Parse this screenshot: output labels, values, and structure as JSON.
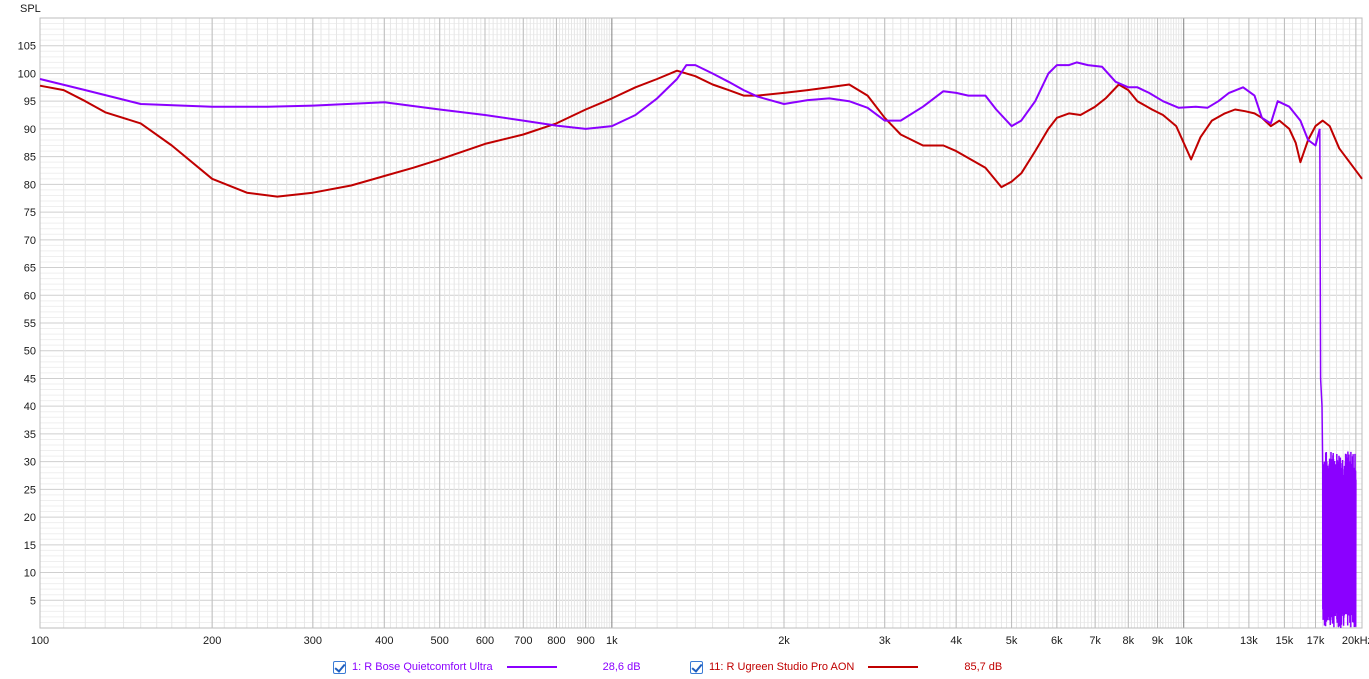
{
  "chart_data": {
    "type": "line",
    "ylabel": "SPL",
    "x_scale": "log",
    "xlim": [
      100,
      20500
    ],
    "ylim": [
      0,
      110
    ],
    "yticks": [
      5,
      10,
      15,
      20,
      25,
      30,
      35,
      40,
      45,
      50,
      55,
      60,
      65,
      70,
      75,
      80,
      85,
      90,
      95,
      100,
      105
    ],
    "xticks": [
      {
        "v": 100,
        "l": "100"
      },
      {
        "v": 200,
        "l": "200"
      },
      {
        "v": 300,
        "l": "300"
      },
      {
        "v": 400,
        "l": "400"
      },
      {
        "v": 500,
        "l": "500"
      },
      {
        "v": 600,
        "l": "600"
      },
      {
        "v": 700,
        "l": "700"
      },
      {
        "v": 800,
        "l": "800"
      },
      {
        "v": 900,
        "l": "900"
      },
      {
        "v": 1000,
        "l": "1k"
      },
      {
        "v": 2000,
        "l": "2k"
      },
      {
        "v": 3000,
        "l": "3k"
      },
      {
        "v": 4000,
        "l": "4k"
      },
      {
        "v": 5000,
        "l": "5k"
      },
      {
        "v": 6000,
        "l": "6k"
      },
      {
        "v": 7000,
        "l": "7k"
      },
      {
        "v": 8000,
        "l": "8k"
      },
      {
        "v": 9000,
        "l": "9k"
      },
      {
        "v": 10000,
        "l": "10k"
      },
      {
        "v": 13000,
        "l": "13k"
      },
      {
        "v": 15000,
        "l": "15k"
      },
      {
        "v": 17000,
        "l": "17k"
      },
      {
        "v": 20000,
        "l": "20kHz"
      }
    ],
    "grid": true,
    "series": [
      {
        "name": "1: R Bose Quietcomfort Ultra",
        "color": "#8b00ff",
        "points": [
          [
            100,
            99
          ],
          [
            120,
            97
          ],
          [
            150,
            94.5
          ],
          [
            200,
            94
          ],
          [
            250,
            94
          ],
          [
            300,
            94.2
          ],
          [
            400,
            94.8
          ],
          [
            500,
            93.5
          ],
          [
            600,
            92.5
          ],
          [
            700,
            91.5
          ],
          [
            800,
            90.6
          ],
          [
            900,
            90
          ],
          [
            1000,
            90.5
          ],
          [
            1100,
            92.5
          ],
          [
            1200,
            95.5
          ],
          [
            1300,
            99
          ],
          [
            1350,
            101.5
          ],
          [
            1400,
            101.5
          ],
          [
            1500,
            100
          ],
          [
            1600,
            98.5
          ],
          [
            1700,
            97
          ],
          [
            1800,
            95.8
          ],
          [
            2000,
            94.5
          ],
          [
            2200,
            95.2
          ],
          [
            2400,
            95.5
          ],
          [
            2600,
            95
          ],
          [
            2800,
            93.8
          ],
          [
            3000,
            91.5
          ],
          [
            3200,
            91.5
          ],
          [
            3500,
            94
          ],
          [
            3800,
            96.8
          ],
          [
            4000,
            96.5
          ],
          [
            4200,
            96
          ],
          [
            4500,
            96
          ],
          [
            4700,
            93.5
          ],
          [
            5000,
            90.5
          ],
          [
            5200,
            91.5
          ],
          [
            5500,
            95
          ],
          [
            5800,
            100
          ],
          [
            6000,
            101.5
          ],
          [
            6300,
            101.5
          ],
          [
            6500,
            102
          ],
          [
            6800,
            101.5
          ],
          [
            7200,
            101.2
          ],
          [
            7600,
            98.5
          ],
          [
            8000,
            97.5
          ],
          [
            8300,
            97.5
          ],
          [
            8700,
            96.5
          ],
          [
            9200,
            95
          ],
          [
            9800,
            93.8
          ],
          [
            10500,
            94
          ],
          [
            11000,
            93.8
          ],
          [
            11500,
            95
          ],
          [
            12000,
            96.5
          ],
          [
            12700,
            97.5
          ],
          [
            13300,
            96
          ],
          [
            13700,
            92
          ],
          [
            14200,
            91
          ],
          [
            14600,
            95
          ],
          [
            15300,
            94
          ],
          [
            16000,
            91.5
          ],
          [
            16500,
            88
          ],
          [
            17000,
            87
          ],
          [
            17300,
            90
          ]
        ],
        "tail": {
          "from_hz": 17300,
          "to_hz": 20000,
          "min": 0,
          "max": 32
        }
      },
      {
        "name": "11: R Ugreen Studio Pro AON",
        "color": "#c00000",
        "points": [
          [
            100,
            97.8
          ],
          [
            110,
            97
          ],
          [
            120,
            95
          ],
          [
            130,
            93
          ],
          [
            150,
            91
          ],
          [
            170,
            87
          ],
          [
            200,
            81
          ],
          [
            230,
            78.5
          ],
          [
            260,
            77.8
          ],
          [
            300,
            78.5
          ],
          [
            350,
            79.8
          ],
          [
            400,
            81.5
          ],
          [
            450,
            83
          ],
          [
            500,
            84.5
          ],
          [
            600,
            87.3
          ],
          [
            700,
            89
          ],
          [
            800,
            91
          ],
          [
            900,
            93.5
          ],
          [
            1000,
            95.5
          ],
          [
            1100,
            97.5
          ],
          [
            1200,
            99
          ],
          [
            1300,
            100.5
          ],
          [
            1400,
            99.5
          ],
          [
            1500,
            98
          ],
          [
            1600,
            97
          ],
          [
            1700,
            96
          ],
          [
            1800,
            96
          ],
          [
            2000,
            96.5
          ],
          [
            2200,
            97
          ],
          [
            2400,
            97.5
          ],
          [
            2600,
            98
          ],
          [
            2800,
            96
          ],
          [
            3000,
            92
          ],
          [
            3200,
            89
          ],
          [
            3500,
            87
          ],
          [
            3800,
            87
          ],
          [
            4000,
            86
          ],
          [
            4500,
            83
          ],
          [
            4800,
            79.5
          ],
          [
            5000,
            80.5
          ],
          [
            5200,
            82
          ],
          [
            5500,
            86
          ],
          [
            5800,
            90
          ],
          [
            6000,
            92
          ],
          [
            6300,
            92.8
          ],
          [
            6600,
            92.5
          ],
          [
            7000,
            94
          ],
          [
            7300,
            95.5
          ],
          [
            7700,
            98
          ],
          [
            8000,
            97
          ],
          [
            8300,
            95
          ],
          [
            8800,
            93.5
          ],
          [
            9200,
            92.5
          ],
          [
            9700,
            90.5
          ],
          [
            10000,
            87.5
          ],
          [
            10300,
            84.5
          ],
          [
            10700,
            88.5
          ],
          [
            11200,
            91.5
          ],
          [
            11800,
            92.8
          ],
          [
            12300,
            93.5
          ],
          [
            12800,
            93.2
          ],
          [
            13300,
            92.8
          ],
          [
            13700,
            92
          ],
          [
            14200,
            90.5
          ],
          [
            14700,
            91.5
          ],
          [
            15300,
            90
          ],
          [
            15700,
            87.5
          ],
          [
            16000,
            84
          ],
          [
            16500,
            88
          ],
          [
            17000,
            90.5
          ],
          [
            17500,
            91.5
          ],
          [
            18000,
            90.5
          ],
          [
            18700,
            86.5
          ],
          [
            19500,
            84
          ],
          [
            20500,
            81
          ]
        ]
      }
    ],
    "legend": [
      {
        "label": "1: R Bose Quietcomfort Ultra",
        "value": "28,6 dB",
        "color": "#8b00ff"
      },
      {
        "label": "11: R Ugreen Studio Pro AON",
        "value": "85,7 dB",
        "color": "#c00000"
      }
    ]
  }
}
